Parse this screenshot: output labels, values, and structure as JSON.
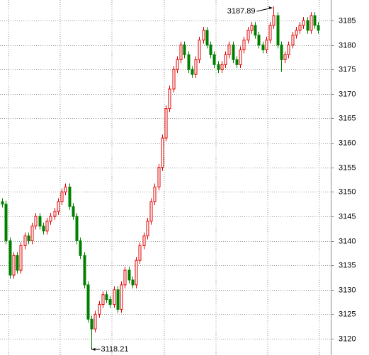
{
  "chart_data": {
    "type": "candlestick",
    "open": [
      3148,
      3147.5,
      3140,
      3133,
      3137,
      3134,
      3139,
      3141,
      3140,
      3143,
      3145,
      3143,
      3142,
      3144,
      3145,
      3146,
      3148,
      3150,
      3151,
      3147,
      3145,
      3140,
      3137,
      3131,
      3124,
      3122,
      3125,
      3127,
      3129,
      3128,
      3127,
      3130,
      3126,
      3131,
      3134,
      3132,
      3131,
      3136,
      3139,
      3141,
      3144,
      3148,
      3151,
      3155,
      3161,
      3167,
      3171,
      3175,
      3177,
      3180,
      3178,
      3175,
      3174,
      3177,
      3181,
      3183,
      3180,
      3178,
      3176,
      3175,
      3176,
      3178,
      3180,
      3177,
      3176,
      3179,
      3181,
      3183,
      3184,
      3182,
      3180,
      3179,
      3181,
      3184,
      3186,
      3180,
      3177,
      3178,
      3180,
      3182,
      3183,
      3184,
      3185,
      3183,
      3186,
      3184
    ],
    "high": [
      3148.7,
      3148.2,
      3140.7,
      3137.7,
      3137.7,
      3139.7,
      3141.7,
      3141.7,
      3143.7,
      3145.7,
      3145.7,
      3143.7,
      3144.7,
      3145.7,
      3146.7,
      3148.7,
      3150.7,
      3151.7,
      3151.7,
      3147.7,
      3145.7,
      3140.7,
      3137.7,
      3131.7,
      3124.7,
      3125.7,
      3127.7,
      3129.7,
      3129.7,
      3128.7,
      3130.7,
      3130.7,
      3131.7,
      3134.7,
      3134.7,
      3132.7,
      3136.7,
      3139.7,
      3141.7,
      3144.7,
      3148.7,
      3151.7,
      3155.7,
      3161.7,
      3167.7,
      3171.7,
      3175.7,
      3177.7,
      3180.7,
      3180.7,
      3178.7,
      3175.7,
      3177.7,
      3181.7,
      3183.7,
      3183.7,
      3180.7,
      3178.7,
      3176.7,
      3176.7,
      3178.7,
      3180.7,
      3180.7,
      3177.7,
      3179.7,
      3181.7,
      3183.7,
      3184.7,
      3184.7,
      3182.7,
      3180.7,
      3181.7,
      3184.7,
      3187.89,
      3186.7,
      3180.7,
      3178.7,
      3180.7,
      3182.7,
      3183.7,
      3184.7,
      3185.7,
      3185.7,
      3186.7,
      3186.7,
      3184.7
    ],
    "low": [
      3146.8,
      3139.3,
      3132.3,
      3132.3,
      3133.3,
      3133.3,
      3138.3,
      3139.3,
      3139.3,
      3142.3,
      3142.3,
      3141.3,
      3141.3,
      3143.3,
      3144.3,
      3145.3,
      3147.3,
      3149.3,
      3146.3,
      3144.3,
      3139.3,
      3136.3,
      3130.3,
      3123.3,
      3118.21,
      3121.3,
      3124.3,
      3126.3,
      3127.3,
      3126.3,
      3126.3,
      3125.3,
      3125.3,
      3130.3,
      3131.3,
      3130.3,
      3130.3,
      3135.3,
      3138.3,
      3140.3,
      3143.3,
      3147.3,
      3150.3,
      3154.3,
      3160.3,
      3166.3,
      3170.3,
      3174.3,
      3176.3,
      3177.3,
      3174.3,
      3173.3,
      3173.3,
      3176.3,
      3180.3,
      3179.3,
      3177.3,
      3175.3,
      3174.3,
      3174.3,
      3175.3,
      3177.3,
      3176.3,
      3175.3,
      3175.3,
      3178.3,
      3180.3,
      3182.3,
      3181.3,
      3179.3,
      3178.3,
      3178.3,
      3180.3,
      3183.3,
      3179.3,
      3174.5,
      3176.3,
      3177.3,
      3179.3,
      3181.3,
      3182.3,
      3183.3,
      3182.3,
      3182.3,
      3183.3,
      3182.3
    ],
    "close": [
      3147.5,
      3140,
      3133,
      3137,
      3134,
      3139,
      3141,
      3140,
      3143,
      3145,
      3143,
      3142,
      3144,
      3145,
      3146,
      3148,
      3150,
      3151,
      3147,
      3145,
      3140,
      3137,
      3131,
      3124,
      3122,
      3125,
      3127,
      3129,
      3128,
      3127,
      3130,
      3126,
      3131,
      3134,
      3132,
      3131,
      3136,
      3139,
      3141,
      3144,
      3148,
      3151,
      3155,
      3161,
      3167,
      3171,
      3175,
      3177,
      3180,
      3178,
      3175,
      3174,
      3177,
      3181,
      3183,
      3180,
      3178,
      3176,
      3175,
      3176,
      3178,
      3180,
      3177,
      3176,
      3179,
      3181,
      3183,
      3184,
      3182,
      3180,
      3179,
      3181,
      3184,
      3186,
      3180,
      3177,
      3178,
      3180,
      3182,
      3183,
      3184,
      3185,
      3183,
      3186,
      3184,
      3183
    ],
    "up_color": "#e00000",
    "down_color": "#008000",
    "ylim": [
      3116.68,
      3189.19
    ],
    "yticks": [
      3120,
      3125,
      3130,
      3135,
      3140,
      3145,
      3150,
      3155,
      3160,
      3165,
      3170,
      3175,
      3180,
      3185
    ],
    "grid": true,
    "annotations": [
      3187.89,
      3118.21
    ]
  }
}
